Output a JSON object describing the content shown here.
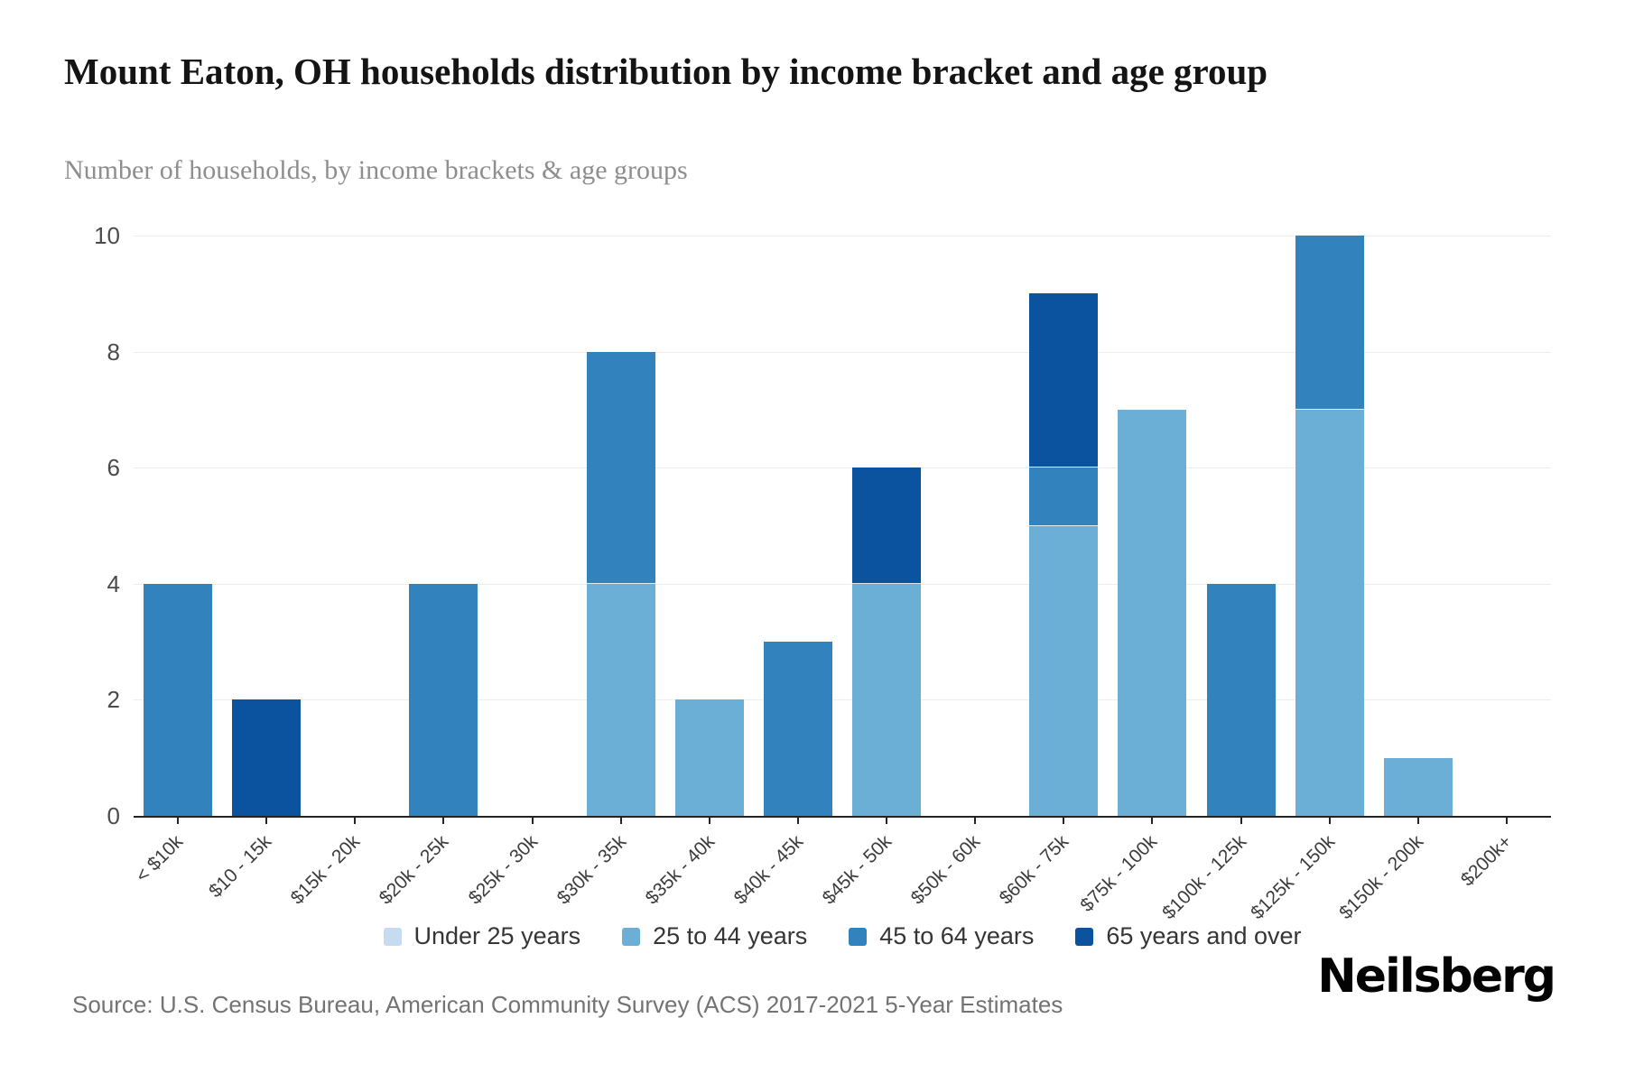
{
  "title": "Mount Eaton, OH households distribution by income bracket and age group",
  "subtitle": "Number of households, by income brackets & age groups",
  "source": "Source: U.S. Census Bureau, American Community Survey (ACS) 2017-2021 5-Year Estimates",
  "logo": "Neilsberg",
  "colors": {
    "under_25": "#c6dbef",
    "age_25_44": "#6baed6",
    "age_45_64": "#3182bd",
    "age_65_over": "#0b529f",
    "grid": "#ededed",
    "axis": "#232323"
  },
  "chart_data": {
    "type": "bar",
    "stacked": true,
    "title": "Mount Eaton, OH households distribution by income bracket and age group",
    "xlabel": "",
    "ylabel": "Number of households",
    "ylim": [
      0,
      10
    ],
    "yticks": [
      0,
      2,
      4,
      6,
      8,
      10
    ],
    "grid": true,
    "legend_position": "bottom",
    "categories": [
      "< $10k",
      "$10 - 15k",
      "$15k - 20k",
      "$20k - 25k",
      "$25k - 30k",
      "$30k - 35k",
      "$35k - 40k",
      "$40k - 45k",
      "$45k - 50k",
      "$50k - 60k",
      "$60k - 75k",
      "$75k - 100k",
      "$100k - 125k",
      "$125k - 150k",
      "$150k - 200k",
      "$200k+"
    ],
    "series": [
      {
        "name": "Under 25 years",
        "color": "#c6dbef",
        "values": [
          0,
          0,
          0,
          0,
          0,
          0,
          0,
          0,
          0,
          0,
          0,
          0,
          0,
          0,
          0,
          0
        ]
      },
      {
        "name": "25 to 44 years",
        "color": "#6baed6",
        "values": [
          0,
          0,
          0,
          0,
          0,
          4,
          2,
          0,
          4,
          0,
          5,
          7,
          0,
          7,
          1,
          0
        ]
      },
      {
        "name": "45 to 64 years",
        "color": "#3182bd",
        "values": [
          4,
          0,
          0,
          4,
          0,
          4,
          0,
          3,
          0,
          0,
          1,
          0,
          4,
          3,
          0,
          0
        ]
      },
      {
        "name": "65 years and over",
        "color": "#0b529f",
        "values": [
          0,
          2,
          0,
          0,
          0,
          0,
          0,
          0,
          2,
          0,
          3,
          0,
          0,
          0,
          0,
          0
        ]
      }
    ],
    "totals": [
      4,
      2,
      0,
      4,
      0,
      8,
      2,
      3,
      6,
      0,
      9,
      7,
      4,
      10,
      1,
      0
    ]
  }
}
